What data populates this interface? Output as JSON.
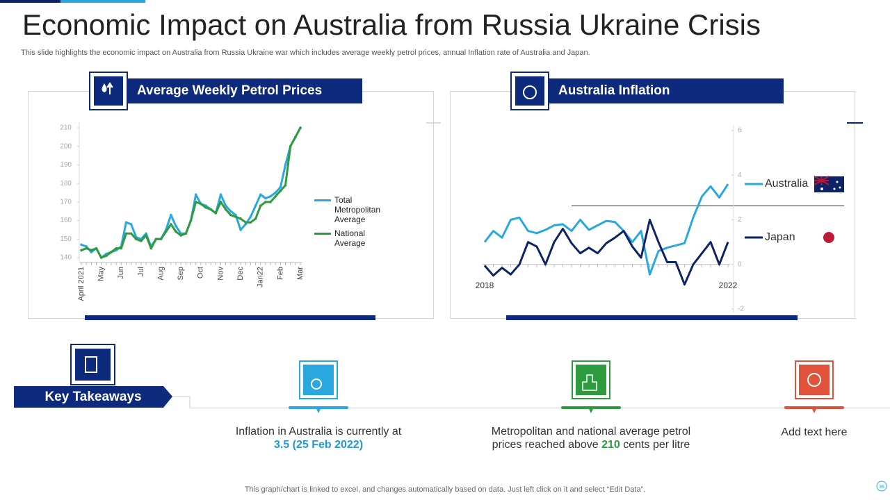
{
  "title": "Economic Impact on Australia from Russia Ukraine Crisis",
  "subtitle": "This slide highlights the economic impact on Australia from Russia Ukraine war which includes average weekly petrol prices, annual Inflation rate of Australia and Japan.",
  "chart_data": [
    {
      "type": "line",
      "title": "Average Weekly Petrol Prices",
      "categories": [
        "April 2021",
        null,
        null,
        null,
        "May",
        null,
        null,
        null,
        "Jun",
        null,
        null,
        null,
        "Jul",
        null,
        null,
        null,
        "Aug",
        null,
        null,
        null,
        "Sep",
        null,
        null,
        null,
        "Oct",
        null,
        null,
        null,
        "Nov",
        null,
        null,
        null,
        "Dec",
        null,
        null,
        null,
        "Jan22",
        null,
        null,
        null,
        "Feb",
        null,
        null,
        null,
        "Mar"
      ],
      "series": [
        {
          "name": "Total Metropolitan Average",
          "color": "#29a8e0",
          "values": [
            147,
            146,
            143,
            145,
            140,
            142,
            143,
            144,
            146,
            159,
            158,
            151,
            150,
            153,
            146,
            150,
            150,
            155,
            163,
            157,
            153,
            153,
            160,
            174,
            169,
            168,
            166,
            164,
            174,
            168,
            165,
            163,
            155,
            158,
            162,
            168,
            174,
            172,
            173,
            175,
            178,
            190,
            200,
            205,
            210
          ]
        },
        {
          "name": "National Average",
          "color": "#2e9b3e",
          "values": [
            144,
            145,
            144,
            145,
            140,
            141,
            143,
            145,
            145,
            153,
            153,
            150,
            149,
            152,
            145,
            150,
            150,
            154,
            158,
            154,
            152,
            153,
            160,
            170,
            169,
            167,
            166,
            164,
            170,
            166,
            163,
            162,
            161,
            159,
            159,
            161,
            168,
            170,
            170,
            173,
            176,
            179,
            200,
            205,
            210
          ]
        }
      ],
      "ylim": [
        140,
        210
      ],
      "yticks": [
        140,
        150,
        160,
        170,
        180,
        190,
        200,
        210
      ],
      "legend": "right"
    },
    {
      "type": "line",
      "title": "Australia Inflation",
      "categories": [
        "2018",
        null,
        null,
        null,
        null,
        null,
        null,
        null,
        null,
        null,
        null,
        null,
        null,
        null,
        null,
        null,
        null,
        null,
        null,
        null,
        null,
        null,
        null,
        null,
        null,
        null,
        null,
        null,
        "2022"
      ],
      "series": [
        {
          "name": "Australia",
          "color": "#29a8e0",
          "values": [
            1.0,
            1.5,
            1.2,
            2.0,
            2.1,
            1.5,
            1.4,
            1.55,
            1.75,
            1.8,
            1.5,
            2.0,
            1.55,
            1.75,
            1.95,
            1.9,
            1.5,
            1.0,
            1.5,
            -0.45,
            0.6,
            0.75,
            0.85,
            0.95,
            2.1,
            3.05,
            3.5,
            3.0,
            3.6
          ]
        },
        {
          "name": "Japan",
          "color": "#0d2366",
          "values": [
            -0.05,
            -0.5,
            -0.15,
            -0.45,
            0,
            1.0,
            0.8,
            0,
            1.0,
            1.6,
            0.95,
            0.5,
            0.75,
            0.5,
            0.95,
            1.2,
            1.5,
            0.8,
            0.3,
            2.0,
            1.0,
            0.1,
            0.1,
            -0.9,
            0,
            0.5,
            1.0,
            0,
            1.0
          ]
        }
      ],
      "ylim": [
        -2,
        6
      ],
      "yticks": [
        6,
        4,
        2,
        0,
        -2
      ],
      "legend": "right"
    }
  ],
  "key_takeaways": {
    "heading": "Key Takeaways",
    "items": [
      {
        "line1": "Inflation in Australia is currently at",
        "highlight": "3.5 (25 Feb 2022)"
      },
      {
        "line1": "Metropolitan and national average petrol",
        "line2_before": "prices reached above",
        "highlight": "210",
        "line2_after": "cents per litre"
      },
      {
        "line1": "Add text here"
      }
    ]
  },
  "footer": "This graph/chart is linked to excel, and changes automatically based on data. Just left click on it and select “Edit Data”.",
  "page_number": "36"
}
